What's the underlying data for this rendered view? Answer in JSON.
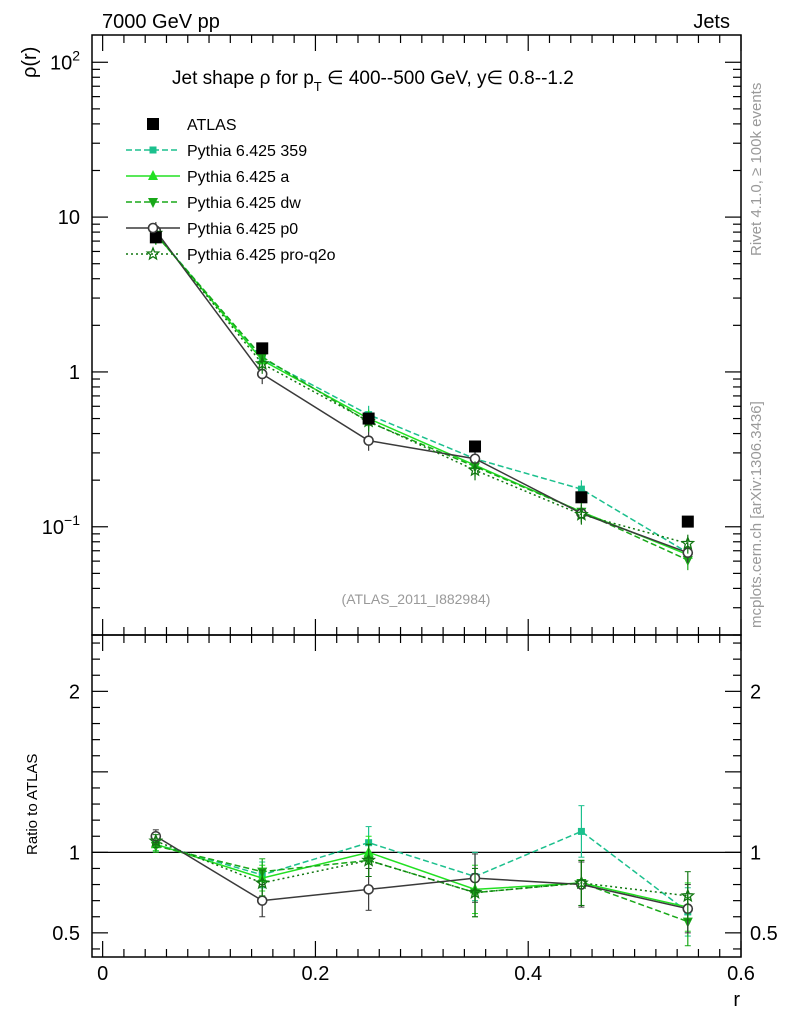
{
  "header": {
    "left": "7000 GeV pp",
    "right": "Jets"
  },
  "side": {
    "rivet": "Rivet 4.1.0, ≥ 100k events",
    "mcplots": "mcplots.cern.ch [arXiv:1306.3436]"
  },
  "chart_data": {
    "type": "line",
    "title_parts": {
      "a": "Jet shape ρ for p",
      "sub": "T",
      "b": " ∈ 400--500 GeV, y∈ 0.8--1.2"
    },
    "analysis_id": "(ATLAS_2011_I882984)",
    "ylabel_main": "ρ(r)",
    "ylabel_ratio": "Ratio to ATLAS",
    "xlabel": "r",
    "xlim": [
      -0.01,
      0.6
    ],
    "ylim_main": [
      0.02,
      150
    ],
    "ylim_ratio": [
      0.35,
      2.35
    ],
    "yscale_main": "log",
    "x_ticks": [
      0,
      0.2,
      0.4,
      0.6
    ],
    "x_tick_labels": [
      "0",
      "0.2",
      "0.4",
      "0.6"
    ],
    "main_y_ticks": [
      {
        "value": 100,
        "base": "10",
        "exp": "2"
      },
      {
        "value": 10,
        "base": "10",
        "exp": ""
      },
      {
        "value": 1,
        "base": "1",
        "exp": ""
      },
      {
        "value": 0.1,
        "base": "10",
        "exp": "−1"
      }
    ],
    "ratio_y_ticks": [
      {
        "value": 2,
        "label": "2"
      },
      {
        "value": 1,
        "label": "1"
      },
      {
        "value": 0.5,
        "label": "0.5"
      }
    ],
    "x": [
      0.05,
      0.15,
      0.25,
      0.35,
      0.45,
      0.55
    ],
    "data": {
      "name": "ATLAS",
      "values": [
        7.4,
        1.42,
        0.5,
        0.33,
        0.155,
        0.108
      ]
    },
    "series": [
      {
        "name": "Pythia 6.425 359",
        "color": "#1bc08d",
        "dash": "6,3",
        "marker": "square-small",
        "values": [
          7.8,
          1.22,
          0.53,
          0.275,
          0.175,
          0.068
        ],
        "ratio": [
          1.05,
          0.86,
          1.06,
          0.85,
          1.13,
          0.63
        ],
        "ratio_err": [
          0.04,
          0.08,
          0.1,
          0.15,
          0.16,
          0.15
        ]
      },
      {
        "name": "Pythia 6.425 a",
        "color": "#22e022",
        "dash": "",
        "marker": "triangle-up",
        "values": [
          7.75,
          1.19,
          0.5,
          0.25,
          0.125,
          0.066
        ],
        "ratio": [
          1.05,
          0.84,
          1.0,
          0.77,
          0.81,
          0.66
        ],
        "ratio_err": [
          0.04,
          0.08,
          0.1,
          0.15,
          0.14,
          0.15
        ]
      },
      {
        "name": "Pythia 6.425 dw",
        "color": "#18a818",
        "dash": "6,3",
        "marker": "triangle-down",
        "values": [
          7.7,
          1.25,
          0.475,
          0.245,
          0.125,
          0.061
        ],
        "ratio": [
          1.04,
          0.88,
          0.95,
          0.75,
          0.81,
          0.57
        ],
        "ratio_err": [
          0.04,
          0.08,
          0.1,
          0.15,
          0.14,
          0.15
        ]
      },
      {
        "name": "Pythia 6.425 p0",
        "color": "#3a3a3a",
        "dash": "",
        "marker": "circle-open",
        "values": [
          8.15,
          0.97,
          0.36,
          0.275,
          0.122,
          0.068
        ],
        "ratio": [
          1.1,
          0.7,
          0.77,
          0.84,
          0.8,
          0.65
        ],
        "ratio_err": [
          0.04,
          0.1,
          0.13,
          0.15,
          0.14,
          0.15
        ]
      },
      {
        "name": "Pythia 6.425 pro-q2o",
        "color": "#117711",
        "dash": "2,3",
        "marker": "star-open",
        "values": [
          7.85,
          1.13,
          0.48,
          0.232,
          0.12,
          0.078
        ],
        "ratio": [
          1.07,
          0.81,
          0.95,
          0.75,
          0.81,
          0.73
        ],
        "ratio_err": [
          0.04,
          0.08,
          0.1,
          0.15,
          0.14,
          0.15
        ]
      }
    ]
  }
}
